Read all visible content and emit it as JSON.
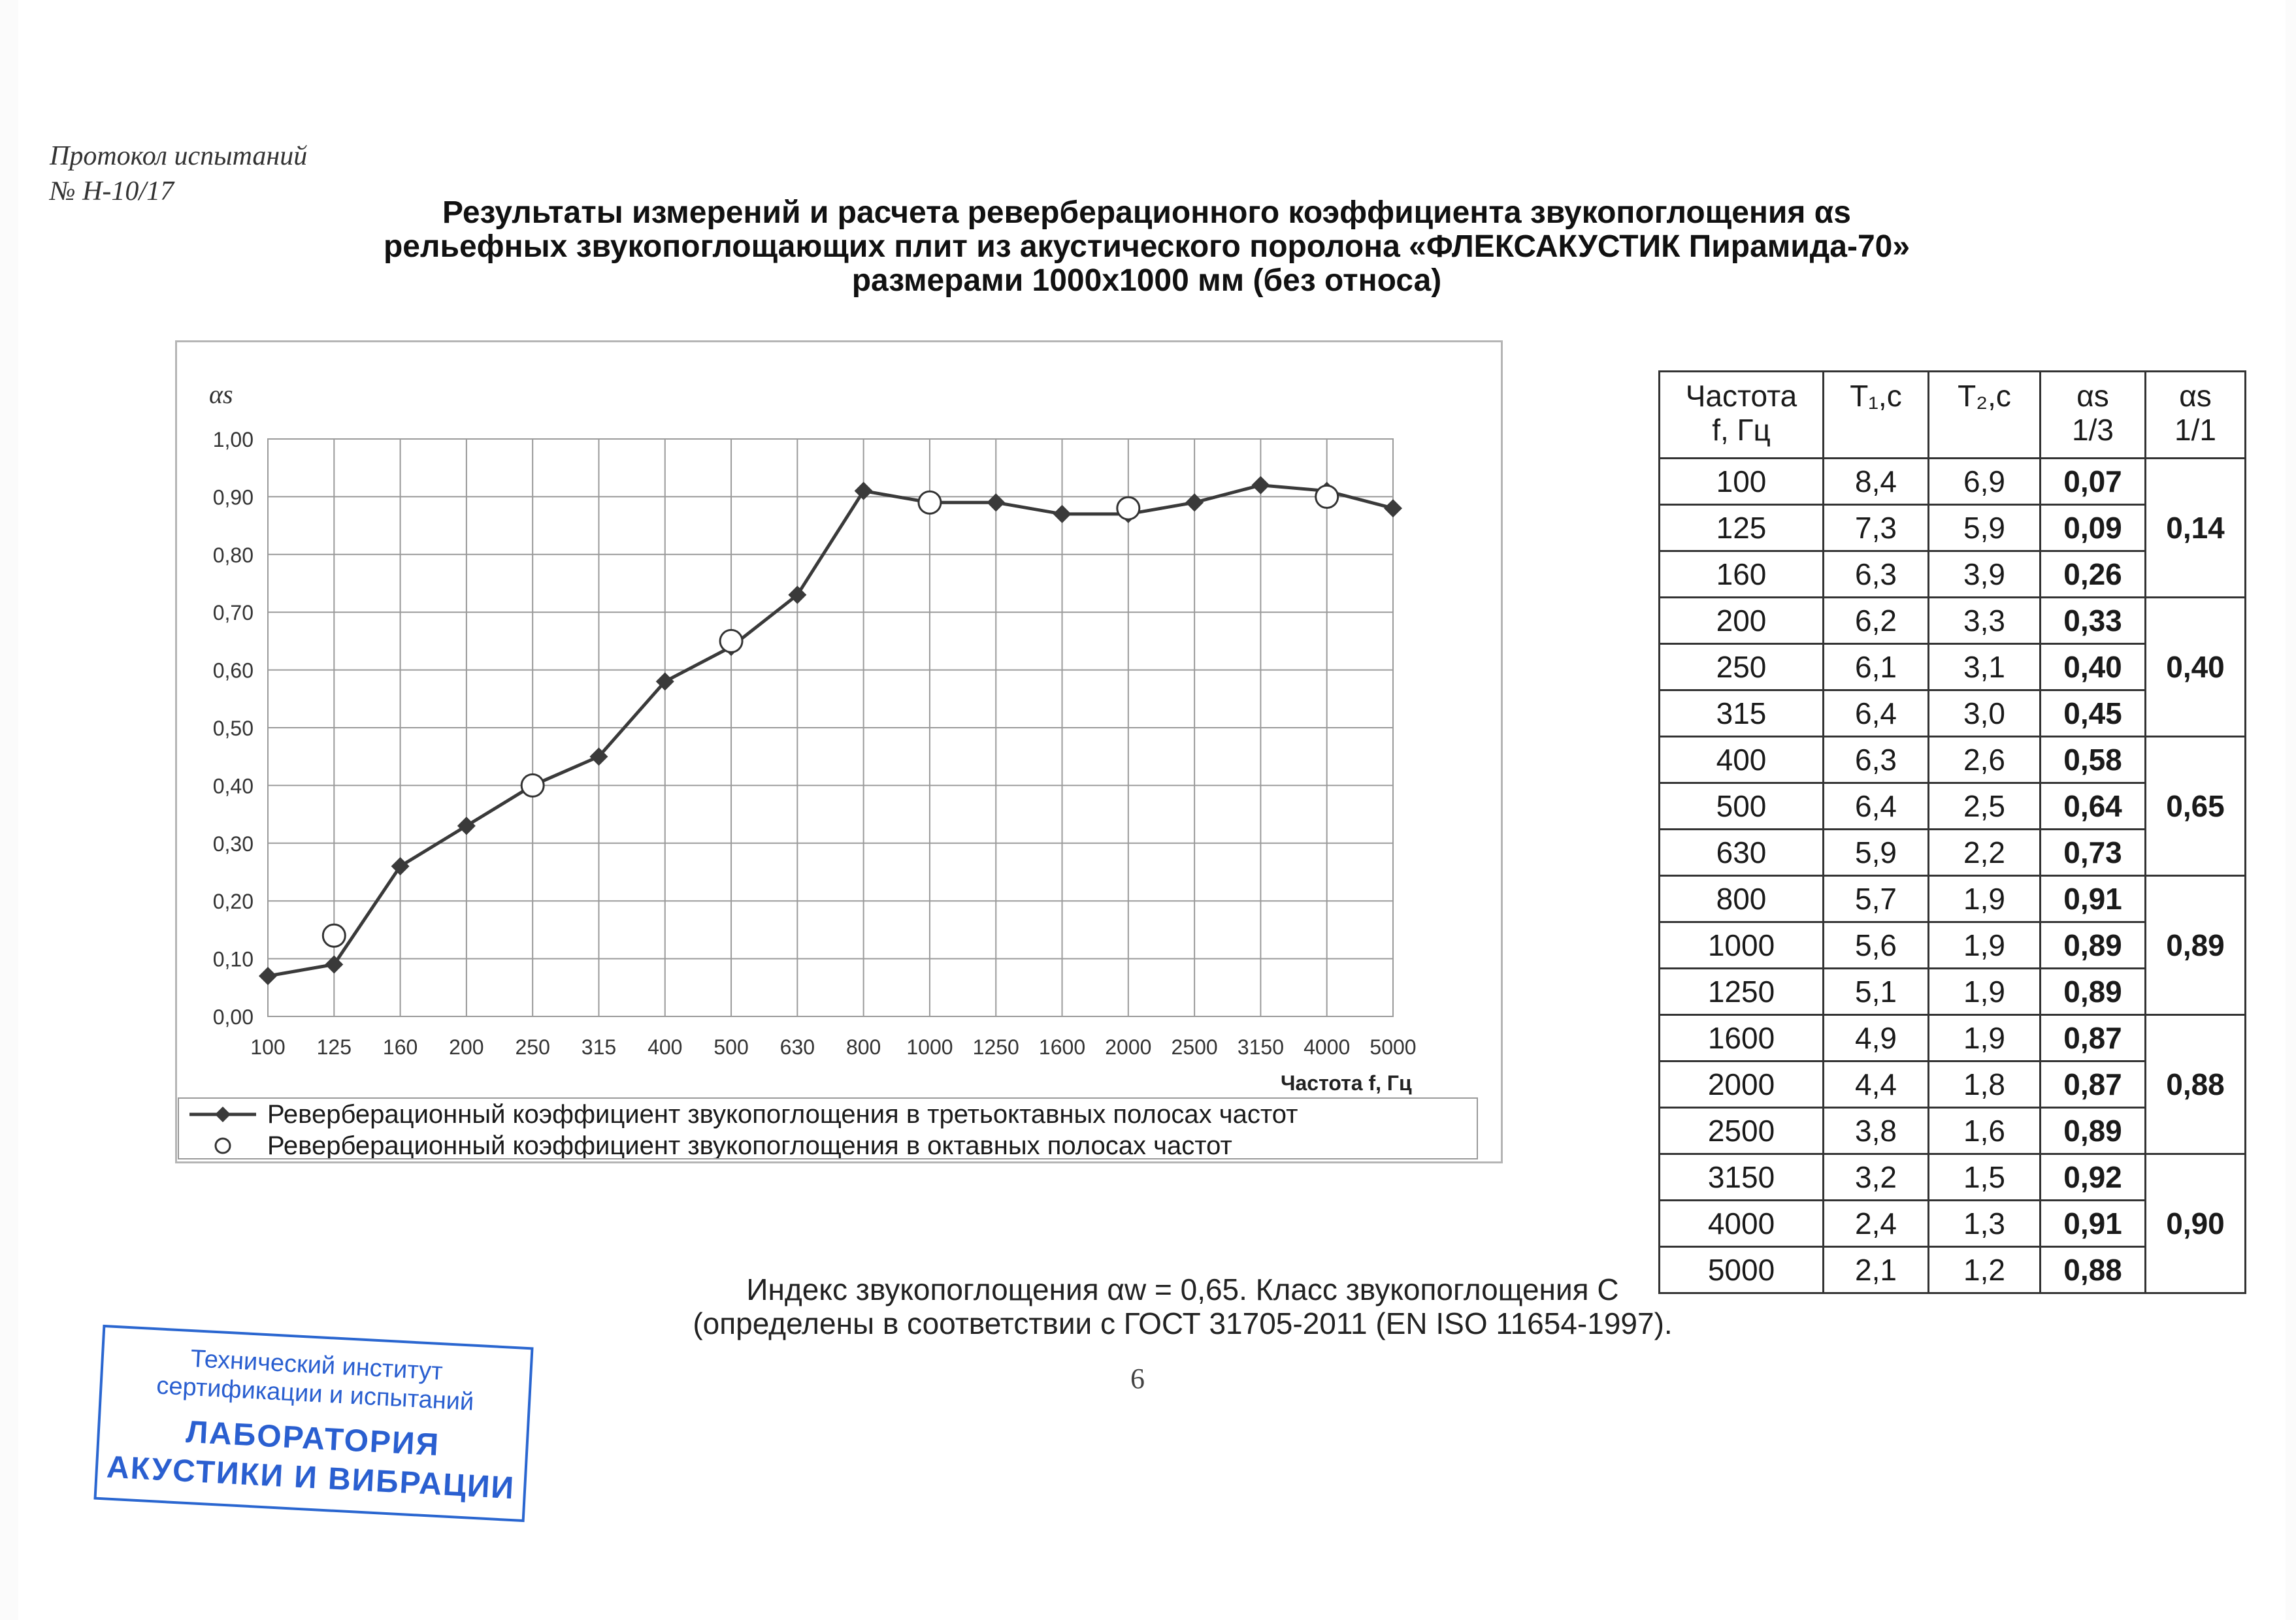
{
  "header": {
    "protocol_line1": "Протокол испытаний",
    "protocol_line2": "№ Н-10/17"
  },
  "title": {
    "line1": "Результаты измерений и расчета реверберационного коэффициента звукопоглощения  αs",
    "line2": "рельефных звукопоглощающих плит из акустического поролона «ФЛЕКСАКУСТИК Пирамида-70»",
    "line3": "размерами 1000х1000 мм (без относа)"
  },
  "chart_data": {
    "type": "line",
    "ylabel": "αs",
    "xlabel": "Частота f, Гц",
    "ylim": [
      0,
      1
    ],
    "grid": true,
    "legend_position": "bottom",
    "y_ticks": [
      "0,00",
      "0,10",
      "0,20",
      "0,30",
      "0,40",
      "0,50",
      "0,60",
      "0,70",
      "0,80",
      "0,90",
      "1,00"
    ],
    "categories": [
      "100",
      "125",
      "160",
      "200",
      "250",
      "315",
      "400",
      "500",
      "630",
      "800",
      "1000",
      "1250",
      "1600",
      "2000",
      "2500",
      "3150",
      "4000",
      "5000"
    ],
    "series": [
      {
        "name": "Реверберационный коэффициент звукопоглощения в третьоктавных полосах частот",
        "marker": "diamond",
        "color": "#3a3a3a",
        "values": [
          0.07,
          0.09,
          0.26,
          0.33,
          0.4,
          0.45,
          0.58,
          0.64,
          0.73,
          0.91,
          0.89,
          0.89,
          0.87,
          0.87,
          0.89,
          0.92,
          0.91,
          0.88
        ]
      },
      {
        "name": "Реверберационный коэффициент звукопоглощения в октавных полосах частот",
        "marker": "circle",
        "color": "#ffffff",
        "x": [
          "125",
          "250",
          "500",
          "1000",
          "2000",
          "4000"
        ],
        "values": [
          0.14,
          0.4,
          0.65,
          0.89,
          0.88,
          0.9
        ]
      }
    ]
  },
  "table": {
    "headers": [
      {
        "line1": "Частота",
        "line2": "f, Гц"
      },
      {
        "line1": "T₁,с",
        "line2": ""
      },
      {
        "line1": "T₂,с",
        "line2": ""
      },
      {
        "line1": "αs",
        "line2": "1/3"
      },
      {
        "line1": "αs",
        "line2": "1/1"
      }
    ],
    "rows": [
      {
        "f": "100",
        "t1": "8,4",
        "t2": "6,9",
        "a13": "0,07"
      },
      {
        "f": "125",
        "t1": "7,3",
        "t2": "5,9",
        "a13": "0,09"
      },
      {
        "f": "160",
        "t1": "6,3",
        "t2": "3,9",
        "a13": "0,26"
      },
      {
        "f": "200",
        "t1": "6,2",
        "t2": "3,3",
        "a13": "0,33"
      },
      {
        "f": "250",
        "t1": "6,1",
        "t2": "3,1",
        "a13": "0,40"
      },
      {
        "f": "315",
        "t1": "6,4",
        "t2": "3,0",
        "a13": "0,45"
      },
      {
        "f": "400",
        "t1": "6,3",
        "t2": "2,6",
        "a13": "0,58"
      },
      {
        "f": "500",
        "t1": "6,4",
        "t2": "2,5",
        "a13": "0,64"
      },
      {
        "f": "630",
        "t1": "5,9",
        "t2": "2,2",
        "a13": "0,73"
      },
      {
        "f": "800",
        "t1": "5,7",
        "t2": "1,9",
        "a13": "0,91"
      },
      {
        "f": "1000",
        "t1": "5,6",
        "t2": "1,9",
        "a13": "0,89"
      },
      {
        "f": "1250",
        "t1": "5,1",
        "t2": "1,9",
        "a13": "0,89"
      },
      {
        "f": "1600",
        "t1": "4,9",
        "t2": "1,9",
        "a13": "0,87"
      },
      {
        "f": "2000",
        "t1": "4,4",
        "t2": "1,8",
        "a13": "0,87"
      },
      {
        "f": "2500",
        "t1": "3,8",
        "t2": "1,6",
        "a13": "0,89"
      },
      {
        "f": "3150",
        "t1": "3,2",
        "t2": "1,5",
        "a13": "0,92"
      },
      {
        "f": "4000",
        "t1": "2,4",
        "t2": "1,3",
        "a13": "0,91"
      },
      {
        "f": "5000",
        "t1": "2,1",
        "t2": "1,2",
        "a13": "0,88"
      }
    ],
    "octave": [
      "0,14",
      "0,40",
      "0,65",
      "0,89",
      "0,88",
      "0,90"
    ]
  },
  "footnote": {
    "line1": "Индекс звукопоглощения αw = 0,65. Класс звукопоглощения  С",
    "line2": "(определены в соответствии с ГОСТ 31705-2011 (EN ISO 11654-1997)."
  },
  "page_number": "6",
  "stamp": {
    "line1": "Технический институт",
    "line2": "сертификации и испытаний",
    "line3": "ЛАБОРАТОРИЯ",
    "line4": "АКУСТИКИ И ВИБРАЦИИ"
  }
}
